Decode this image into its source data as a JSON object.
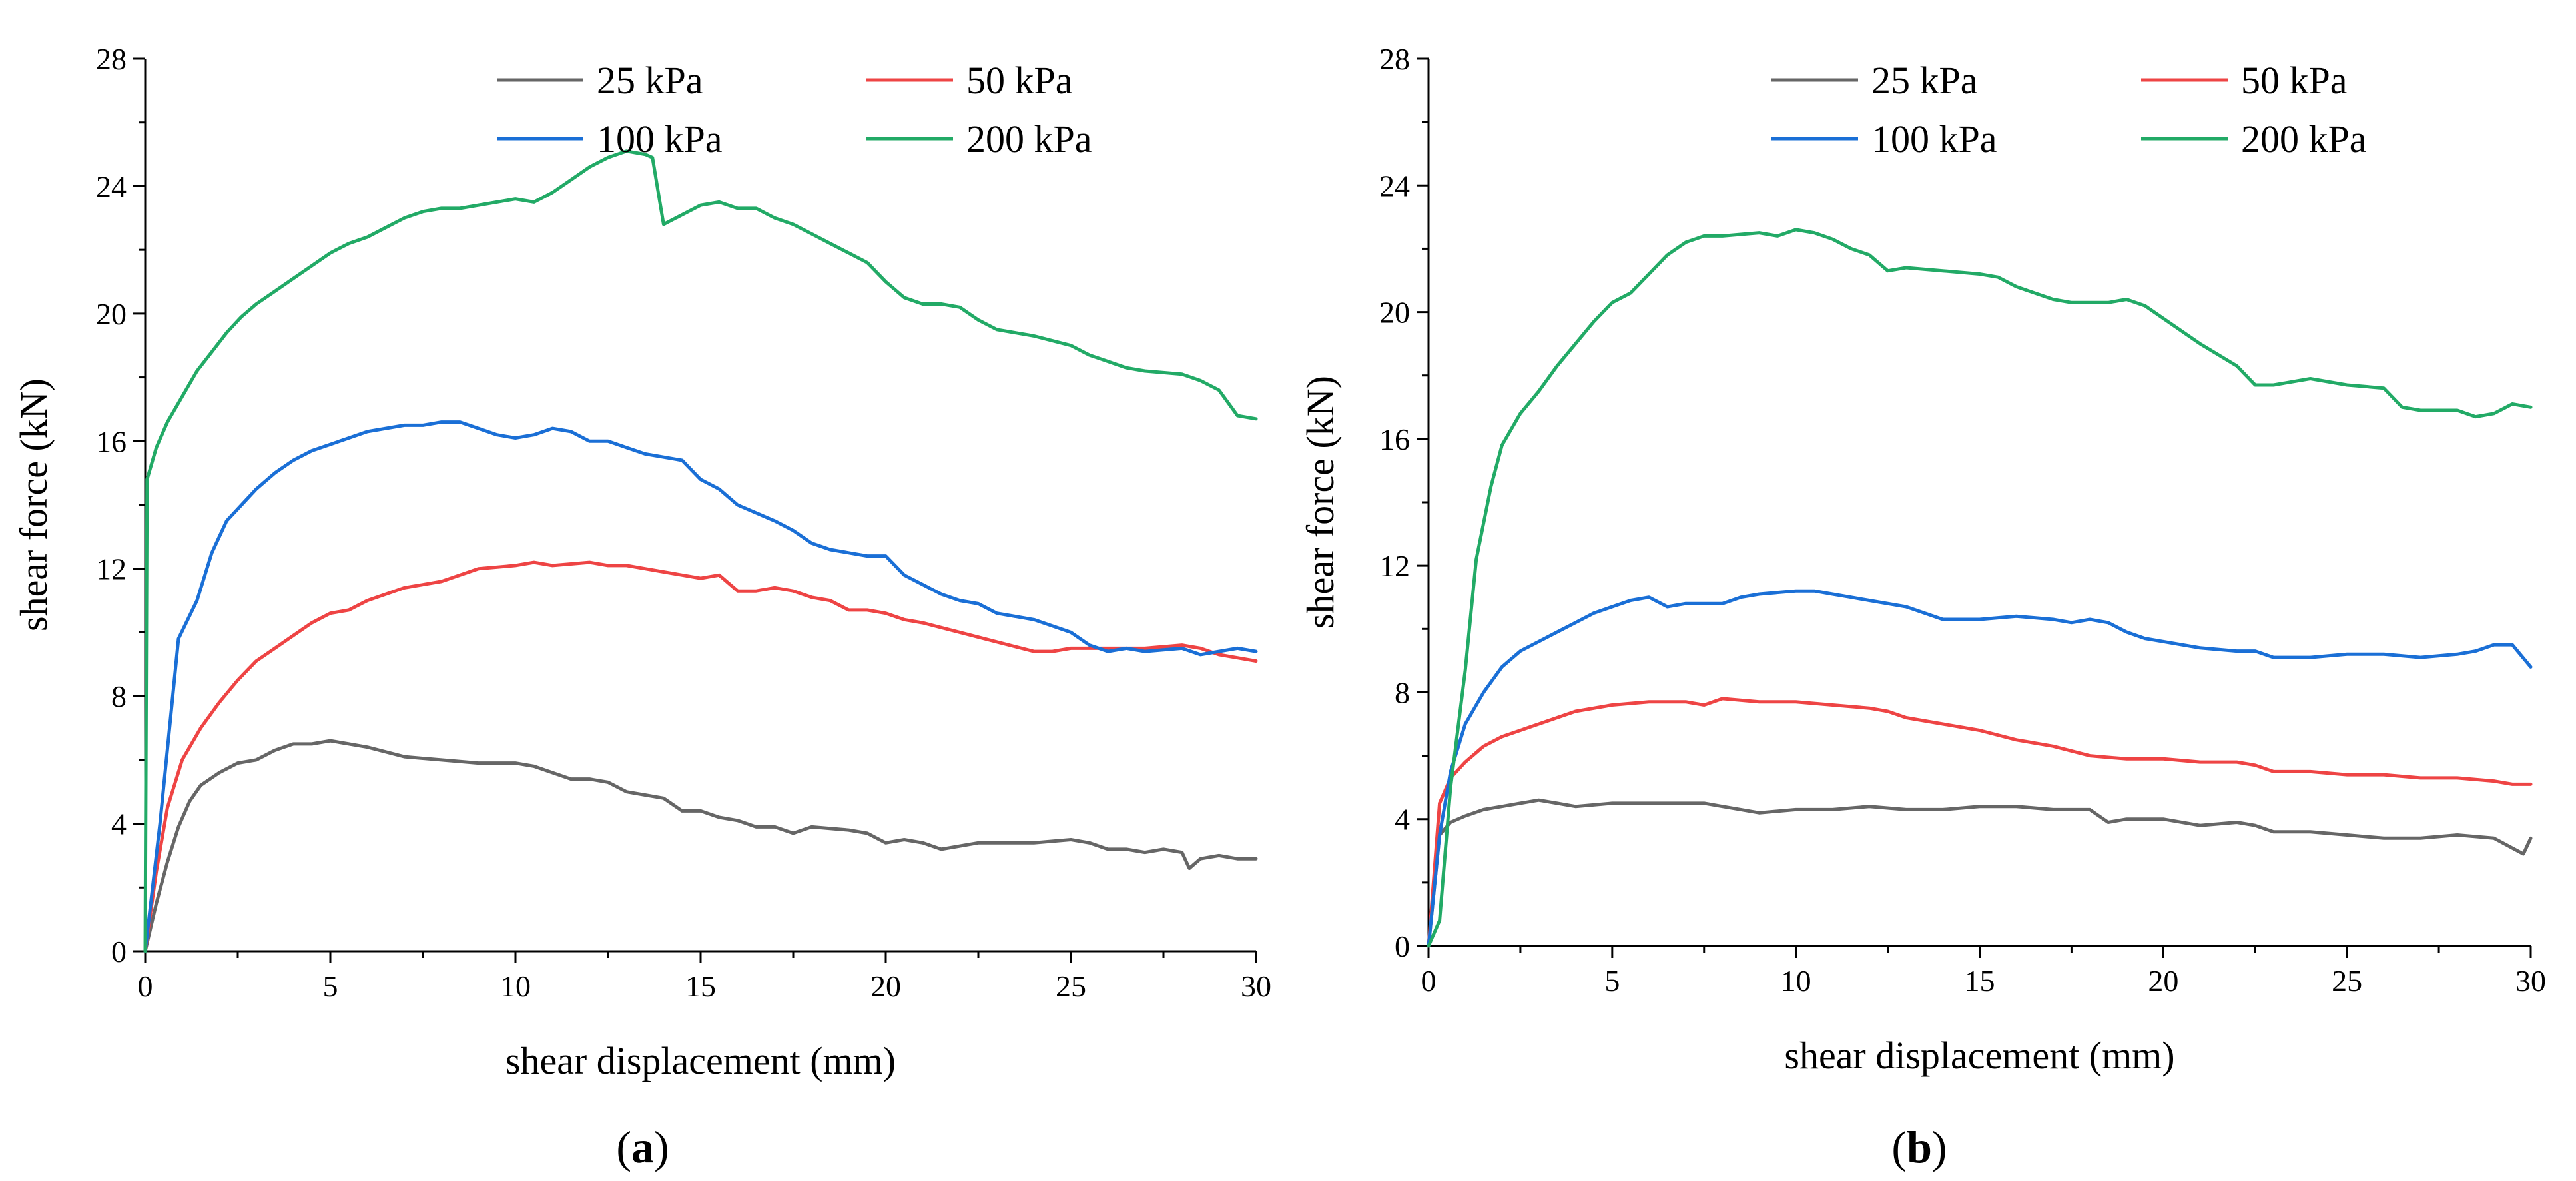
{
  "chart_data": [
    {
      "type": "line",
      "panel_label": {
        "open": "(",
        "letter": "a",
        "close": ")"
      },
      "xlabel": "shear displacement (mm)",
      "ylabel": "shear force (kN)",
      "xlim": [
        0,
        30
      ],
      "ylim": [
        0,
        28
      ],
      "xticks": [
        0,
        5,
        10,
        15,
        20,
        25,
        30
      ],
      "yticks": [
        0,
        4,
        8,
        12,
        16,
        20,
        24,
        28
      ],
      "grid": false,
      "legend_position": "top-right",
      "series": [
        {
          "name": "25 kPa",
          "color": "#666666",
          "x": [
            0,
            0.3,
            0.6,
            0.9,
            1.2,
            1.5,
            2,
            2.5,
            3,
            3.5,
            4,
            4.5,
            5,
            5.5,
            6,
            7,
            8,
            9,
            10,
            10.5,
            11,
            11.5,
            12,
            12.5,
            13,
            13.5,
            14,
            14.5,
            15,
            15.5,
            16,
            16.5,
            17,
            17.5,
            18,
            19,
            19.5,
            20,
            20.5,
            21,
            21.5,
            22,
            22.5,
            23,
            24,
            25,
            25.5,
            26,
            26.5,
            27,
            27.5,
            28,
            28.2,
            28.5,
            29,
            29.5,
            30
          ],
          "y": [
            0,
            1.5,
            2.8,
            3.9,
            4.7,
            5.2,
            5.6,
            5.9,
            6.0,
            6.3,
            6.5,
            6.5,
            6.6,
            6.5,
            6.4,
            6.1,
            6.0,
            5.9,
            5.9,
            5.8,
            5.6,
            5.4,
            5.4,
            5.3,
            5.0,
            4.9,
            4.8,
            4.4,
            4.4,
            4.2,
            4.1,
            3.9,
            3.9,
            3.7,
            3.9,
            3.8,
            3.7,
            3.4,
            3.5,
            3.4,
            3.2,
            3.3,
            3.4,
            3.4,
            3.4,
            3.5,
            3.4,
            3.2,
            3.2,
            3.1,
            3.2,
            3.1,
            2.6,
            2.9,
            3.0,
            2.9,
            2.9
          ]
        },
        {
          "name": "50 kPa",
          "color": "#ee4444",
          "x": [
            0,
            0.3,
            0.6,
            1,
            1.5,
            2,
            2.5,
            3,
            3.5,
            4,
            4.5,
            5,
            5.5,
            6,
            7,
            8,
            9,
            10,
            10.5,
            11,
            12,
            12.5,
            13,
            13.5,
            14,
            14.5,
            15,
            15.5,
            16,
            16.5,
            17,
            17.5,
            18,
            18.5,
            19,
            19.5,
            20,
            20.5,
            21,
            22,
            23,
            24,
            24.5,
            25,
            26,
            27,
            28,
            28.5,
            29,
            29.5,
            30
          ],
          "y": [
            0,
            2.5,
            4.5,
            6.0,
            7.0,
            7.8,
            8.5,
            9.1,
            9.5,
            9.9,
            10.3,
            10.6,
            10.7,
            11.0,
            11.4,
            11.6,
            12.0,
            12.1,
            12.2,
            12.1,
            12.2,
            12.1,
            12.1,
            12.0,
            11.9,
            11.8,
            11.7,
            11.8,
            11.3,
            11.3,
            11.4,
            11.3,
            11.1,
            11.0,
            10.7,
            10.7,
            10.6,
            10.4,
            10.3,
            10.0,
            9.7,
            9.4,
            9.4,
            9.5,
            9.5,
            9.5,
            9.6,
            9.5,
            9.3,
            9.2,
            9.1
          ]
        },
        {
          "name": "100 kPa",
          "color": "#1a6fd6",
          "x": [
            0,
            0.4,
            0.9,
            1.4,
            1.8,
            2.2,
            2.6,
            3,
            3.5,
            4,
            4.5,
            5,
            5.5,
            6,
            6.5,
            7,
            7.5,
            8,
            8.5,
            9,
            9.5,
            10,
            10.5,
            11,
            11.5,
            12,
            12.5,
            13,
            13.5,
            14,
            14.5,
            15,
            15.5,
            16,
            17,
            17.5,
            18,
            18.5,
            19,
            19.5,
            20,
            20.5,
            21,
            21.5,
            22,
            22.5,
            23,
            24,
            25,
            25.5,
            26,
            26.5,
            27,
            28,
            28.5,
            29,
            29.5,
            30
          ],
          "y": [
            0,
            4.0,
            9.8,
            11.0,
            12.5,
            13.5,
            14.0,
            14.5,
            15.0,
            15.4,
            15.7,
            15.9,
            16.1,
            16.3,
            16.4,
            16.5,
            16.5,
            16.6,
            16.6,
            16.4,
            16.2,
            16.1,
            16.2,
            16.4,
            16.3,
            16.0,
            16.0,
            15.8,
            15.6,
            15.5,
            15.4,
            14.8,
            14.5,
            14.0,
            13.5,
            13.2,
            12.8,
            12.6,
            12.5,
            12.4,
            12.4,
            11.8,
            11.5,
            11.2,
            11.0,
            10.9,
            10.6,
            10.4,
            10.0,
            9.6,
            9.4,
            9.5,
            9.4,
            9.5,
            9.3,
            9.4,
            9.5,
            9.4
          ]
        },
        {
          "name": "200 kPa",
          "color": "#22aa66",
          "x": [
            0,
            0.05,
            0.3,
            0.6,
            1,
            1.4,
            1.8,
            2.2,
            2.6,
            3,
            3.5,
            4,
            4.5,
            5,
            5.5,
            6,
            6.5,
            7,
            7.5,
            8,
            8.5,
            9,
            9.5,
            10,
            10.5,
            11,
            11.5,
            12,
            12.5,
            13,
            13.5,
            13.7,
            14,
            14.5,
            15,
            15.5,
            16,
            16.5,
            17,
            17.5,
            18,
            18.5,
            19,
            19.5,
            20,
            20.5,
            21,
            21.5,
            22,
            22.5,
            23,
            24,
            25,
            25.5,
            26,
            26.5,
            27,
            28,
            28.5,
            29,
            29.5,
            30
          ],
          "y": [
            0,
            14.8,
            15.8,
            16.6,
            17.4,
            18.2,
            18.8,
            19.4,
            19.9,
            20.3,
            20.7,
            21.1,
            21.5,
            21.9,
            22.2,
            22.4,
            22.7,
            23.0,
            23.2,
            23.3,
            23.3,
            23.4,
            23.5,
            23.6,
            23.5,
            23.8,
            24.2,
            24.6,
            24.9,
            25.1,
            25.0,
            24.9,
            22.8,
            23.1,
            23.4,
            23.5,
            23.3,
            23.3,
            23.0,
            22.8,
            22.5,
            22.2,
            21.9,
            21.6,
            21.0,
            20.5,
            20.3,
            20.3,
            20.2,
            19.8,
            19.5,
            19.3,
            19.0,
            18.7,
            18.5,
            18.3,
            18.2,
            18.1,
            17.9,
            17.6,
            16.8,
            16.7
          ]
        }
      ]
    },
    {
      "type": "line",
      "panel_label": {
        "open": "(",
        "letter": "b",
        "close": ")"
      },
      "xlabel": "shear displacement (mm)",
      "ylabel": "shear force (kN)",
      "xlim": [
        0,
        30
      ],
      "ylim": [
        0,
        28
      ],
      "xticks": [
        0,
        5,
        10,
        15,
        20,
        25,
        30
      ],
      "yticks": [
        0,
        4,
        8,
        12,
        16,
        20,
        24,
        28
      ],
      "grid": false,
      "legend_position": "top-right",
      "series": [
        {
          "name": "25 kPa",
          "color": "#666666",
          "x": [
            0,
            0.3,
            0.6,
            1,
            1.5,
            2,
            2.5,
            3,
            3.5,
            4,
            5,
            6,
            7,
            7.5,
            8,
            9,
            10,
            11,
            12,
            13,
            14,
            15,
            16,
            17,
            18,
            18.5,
            19,
            20,
            21,
            22,
            22.5,
            23,
            24,
            25,
            26,
            27,
            28,
            29,
            29.8,
            30
          ],
          "y": [
            0,
            3.5,
            3.9,
            4.1,
            4.3,
            4.4,
            4.5,
            4.6,
            4.5,
            4.4,
            4.5,
            4.5,
            4.5,
            4.5,
            4.4,
            4.2,
            4.3,
            4.3,
            4.4,
            4.3,
            4.3,
            4.4,
            4.4,
            4.3,
            4.3,
            3.9,
            4.0,
            4.0,
            3.8,
            3.9,
            3.8,
            3.6,
            3.6,
            3.5,
            3.4,
            3.4,
            3.5,
            3.4,
            2.9,
            3.4
          ]
        },
        {
          "name": "50 kPa",
          "color": "#ee4444",
          "x": [
            0,
            0.3,
            0.6,
            1,
            1.5,
            2,
            3,
            3.5,
            4,
            5,
            6,
            7,
            7.5,
            8,
            9,
            10,
            11,
            12,
            12.5,
            13,
            14,
            15,
            16,
            17,
            18,
            19,
            20,
            21,
            22,
            22.5,
            23,
            24,
            25,
            26,
            27,
            28,
            29,
            29.5,
            30
          ],
          "y": [
            0,
            4.5,
            5.3,
            5.8,
            6.3,
            6.6,
            7.0,
            7.2,
            7.4,
            7.6,
            7.7,
            7.7,
            7.6,
            7.8,
            7.7,
            7.7,
            7.6,
            7.5,
            7.4,
            7.2,
            7.0,
            6.8,
            6.5,
            6.3,
            6.0,
            5.9,
            5.9,
            5.8,
            5.8,
            5.7,
            5.5,
            5.5,
            5.4,
            5.4,
            5.3,
            5.3,
            5.2,
            5.1,
            5.1
          ]
        },
        {
          "name": "100 kPa",
          "color": "#1a6fd6",
          "x": [
            0,
            0.3,
            0.6,
            1,
            1.5,
            2,
            2.5,
            3,
            3.5,
            4,
            4.5,
            5,
            5.5,
            6,
            6.5,
            7,
            8,
            8.5,
            9,
            10,
            10.5,
            11,
            11.5,
            12,
            13,
            13.5,
            14,
            15,
            16,
            17,
            17.5,
            18,
            18.5,
            19,
            19.5,
            20,
            21,
            22,
            22.5,
            23,
            24,
            25,
            26,
            27,
            28,
            28.5,
            29,
            29.5,
            30
          ],
          "y": [
            0,
            3.5,
            5.5,
            7.0,
            8.0,
            8.8,
            9.3,
            9.6,
            9.9,
            10.2,
            10.5,
            10.7,
            10.9,
            11.0,
            10.7,
            10.8,
            10.8,
            11.0,
            11.1,
            11.2,
            11.2,
            11.1,
            11.0,
            10.9,
            10.7,
            10.5,
            10.3,
            10.3,
            10.4,
            10.3,
            10.2,
            10.3,
            10.2,
            9.9,
            9.7,
            9.6,
            9.4,
            9.3,
            9.3,
            9.1,
            9.1,
            9.2,
            9.2,
            9.1,
            9.2,
            9.3,
            9.5,
            9.5,
            8.8
          ]
        },
        {
          "name": "200 kPa",
          "color": "#22aa66",
          "x": [
            0,
            0.3,
            0.6,
            1,
            1.3,
            1.7,
            2,
            2.5,
            3,
            3.5,
            4,
            4.5,
            5,
            5.5,
            6,
            6.5,
            7,
            7.5,
            8,
            9,
            9.5,
            10,
            10.5,
            11,
            11.5,
            12,
            12.5,
            13,
            14,
            15,
            15.5,
            16,
            17,
            17.5,
            18,
            18.5,
            19,
            19.5,
            20,
            21,
            22,
            22.5,
            23,
            24,
            25,
            26,
            26.5,
            27,
            28,
            28.5,
            29,
            29.5,
            30
          ],
          "y": [
            0,
            0.8,
            5.0,
            8.7,
            12.2,
            14.5,
            15.8,
            16.8,
            17.5,
            18.3,
            19.0,
            19.7,
            20.3,
            20.6,
            21.2,
            21.8,
            22.2,
            22.4,
            22.4,
            22.5,
            22.4,
            22.6,
            22.5,
            22.3,
            22.0,
            21.8,
            21.3,
            21.4,
            21.3,
            21.2,
            21.1,
            20.8,
            20.4,
            20.3,
            20.3,
            20.3,
            20.4,
            20.2,
            19.8,
            19.0,
            18.3,
            17.7,
            17.7,
            17.9,
            17.7,
            17.6,
            17.0,
            16.9,
            16.9,
            16.7,
            16.8,
            17.1,
            17.0
          ]
        }
      ]
    }
  ]
}
